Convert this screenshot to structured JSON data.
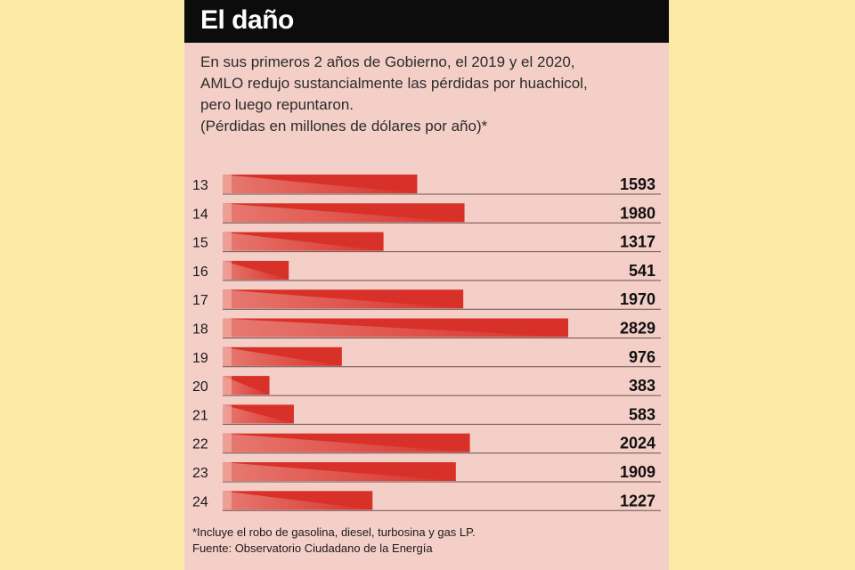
{
  "header": {
    "title": "El daño",
    "subtitle_lines": [
      "En sus primeros 2 años de Gobierno, el 2019 y el 2020,",
      "AMLO redujo sustancialmente las pérdidas por huachicol,",
      "pero luego repuntaron."
    ],
    "note": "(Pérdidas en millones de dólares por año)*"
  },
  "footer": {
    "footnote": "*Incluye el robo de gasolina, diesel, turbosina y gas LP.",
    "source": "Fuente: Observatorio Ciudadano de la Energía"
  },
  "colors": {
    "background": "#fbe9a6",
    "card": "#f4cfc8",
    "bar": "#d8312a",
    "bar_light": "#f3b7ad",
    "title_bar": "#0c0c0c"
  },
  "chart_data": {
    "type": "bar",
    "orientation": "horizontal",
    "categories": [
      "13",
      "14",
      "15",
      "16",
      "17",
      "18",
      "19",
      "20",
      "21",
      "22",
      "23",
      "24"
    ],
    "values": [
      1593,
      1980,
      1317,
      541,
      1970,
      2829,
      976,
      383,
      583,
      2024,
      1909,
      1227
    ],
    "xlim": [
      0,
      2829
    ]
  }
}
